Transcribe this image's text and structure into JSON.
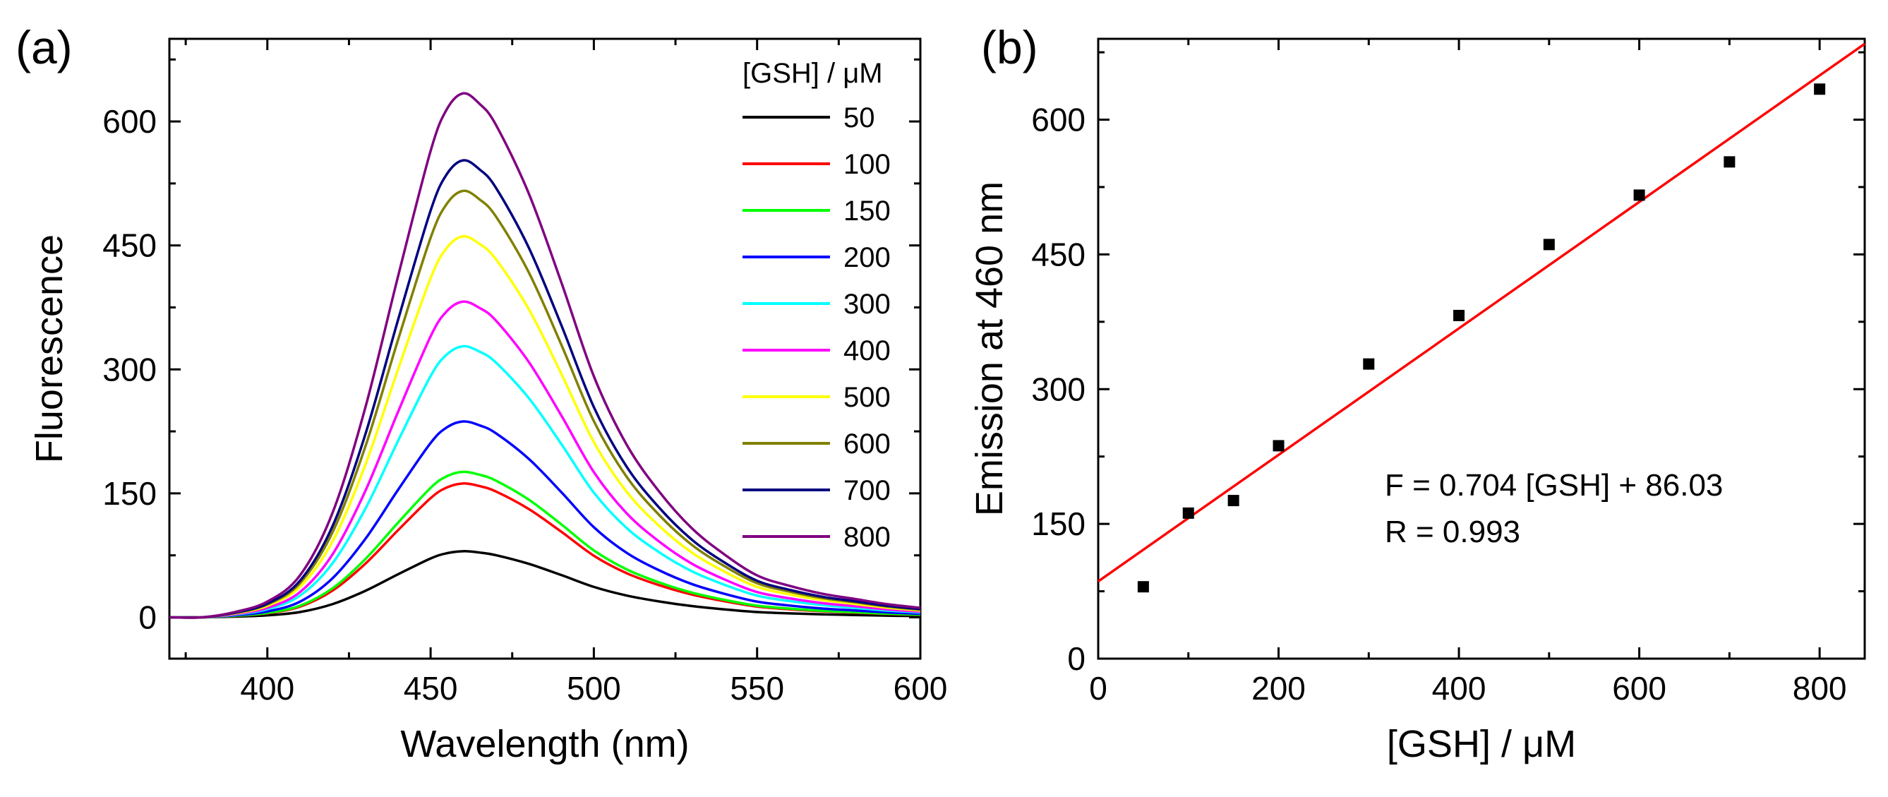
{
  "chart_data": [
    {
      "panel": "(a)",
      "type": "line",
      "xlabel": "Wavelength (nm)",
      "ylabel": "Fluorescence",
      "xlim": [
        370,
        600
      ],
      "ylim": [
        -50,
        700
      ],
      "xticks": [
        400,
        450,
        500,
        550,
        600
      ],
      "yticks": [
        0,
        150,
        300,
        450,
        600
      ],
      "legend_title": "[GSH] / μM",
      "legend_position": "top-right",
      "curve_shape": {
        "x": [
          370,
          380,
          390,
          400,
          410,
          420,
          430,
          440,
          450,
          455,
          460,
          465,
          470,
          480,
          490,
          500,
          510,
          520,
          530,
          540,
          550,
          560,
          570,
          580,
          590,
          600
        ],
        "relative": [
          0.0,
          0.0,
          0.01,
          0.03,
          0.08,
          0.2,
          0.4,
          0.65,
          0.89,
          0.97,
          1.0,
          0.98,
          0.94,
          0.81,
          0.64,
          0.46,
          0.33,
          0.24,
          0.17,
          0.12,
          0.08,
          0.06,
          0.045,
          0.035,
          0.025,
          0.018
        ]
      },
      "series": [
        {
          "name": "50",
          "color": "#000000",
          "peak": 80
        },
        {
          "name": "100",
          "color": "#ff0000",
          "peak": 162
        },
        {
          "name": "150",
          "color": "#00ff00",
          "peak": 176
        },
        {
          "name": "200",
          "color": "#0000ff",
          "peak": 237
        },
        {
          "name": "300",
          "color": "#00ffff",
          "peak": 328
        },
        {
          "name": "400",
          "color": "#ff00ff",
          "peak": 382
        },
        {
          "name": "500",
          "color": "#ffff00",
          "peak": 461
        },
        {
          "name": "600",
          "color": "#808000",
          "peak": 516
        },
        {
          "name": "700",
          "color": "#000080",
          "peak": 553
        },
        {
          "name": "800",
          "color": "#800080",
          "peak": 634
        }
      ]
    },
    {
      "panel": "(b)",
      "type": "scatter",
      "xlabel": "[GSH] / μM",
      "ylabel": "Emission at 460 nm",
      "xlim": [
        0,
        850
      ],
      "ylim": [
        0,
        690
      ],
      "xticks": [
        0,
        200,
        400,
        600,
        800
      ],
      "yticks": [
        0,
        150,
        300,
        450,
        600
      ],
      "x": [
        50,
        100,
        150,
        200,
        300,
        400,
        500,
        600,
        700,
        800
      ],
      "y": [
        80,
        162,
        176,
        237,
        328,
        382,
        461,
        516,
        553,
        634
      ],
      "marker_color": "#000000",
      "fit": {
        "slope": 0.704,
        "intercept": 86.03,
        "color": "#ff0000",
        "equation": "F = 0.704 [GSH] + 86.03",
        "r_label": "R = 0.993"
      }
    }
  ]
}
